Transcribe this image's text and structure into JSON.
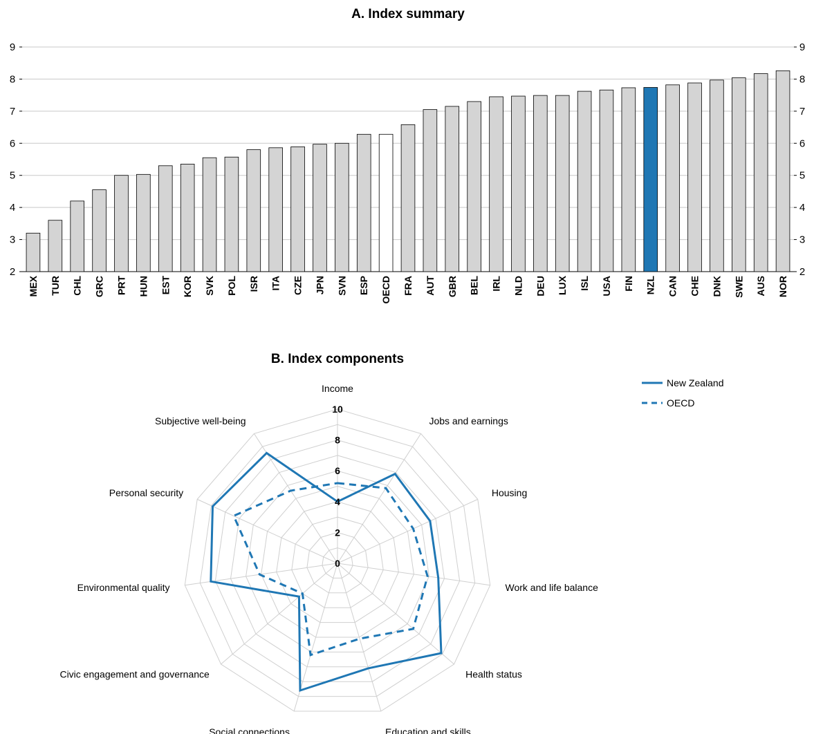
{
  "chart_data": [
    {
      "type": "bar",
      "title": "A. Index summary",
      "categories": [
        "MEX",
        "TUR",
        "CHL",
        "GRC",
        "PRT",
        "HUN",
        "EST",
        "KOR",
        "SVK",
        "POL",
        "ISR",
        "ITA",
        "CZE",
        "JPN",
        "SVN",
        "ESP",
        "OECD",
        "FRA",
        "AUT",
        "GBR",
        "BEL",
        "IRL",
        "NLD",
        "DEU",
        "LUX",
        "ISL",
        "USA",
        "FIN",
        "NZL",
        "CAN",
        "CHE",
        "DNK",
        "SWE",
        "AUS",
        "NOR"
      ],
      "values": [
        3.2,
        3.6,
        4.2,
        4.55,
        5.0,
        5.03,
        5.3,
        5.35,
        5.55,
        5.57,
        5.8,
        5.86,
        5.89,
        5.97,
        6.0,
        6.28,
        6.28,
        6.58,
        7.05,
        7.15,
        7.3,
        7.45,
        7.47,
        7.49,
        7.49,
        7.62,
        7.66,
        7.73,
        7.74,
        7.82,
        7.88,
        7.97,
        8.04,
        8.17,
        8.26
      ],
      "ylim": [
        2,
        9
      ],
      "yticks": [
        2,
        3,
        4,
        5,
        6,
        7,
        8,
        9
      ],
      "grid": true,
      "highlight": {
        "NZL": "#1f77b4",
        "OECD": "#ffffff"
      },
      "bar_color": "#d4d4d4"
    },
    {
      "type": "radar",
      "title": "B. Index components",
      "axes": [
        "Income",
        "Jobs and earnings",
        "Housing",
        "Work and life balance",
        "Health status",
        "Education and skills",
        "Social connections",
        "Civic engagement and governance",
        "Environmental quality",
        "Personal security",
        "Subjective well-being"
      ],
      "rlim": [
        0,
        10
      ],
      "rticks": [
        0,
        2,
        4,
        6,
        8,
        10
      ],
      "series": [
        {
          "name": "New Zealand",
          "style": "solid",
          "values": [
            4.0,
            6.9,
            6.6,
            6.6,
            8.9,
            7.1,
            8.6,
            3.3,
            8.3,
            8.9,
            8.5
          ]
        },
        {
          "name": "OECD",
          "style": "dashed",
          "values": [
            5.2,
            5.8,
            5.4,
            5.9,
            6.5,
            5.1,
            6.2,
            3.0,
            5.1,
            7.4,
            5.6
          ]
        }
      ],
      "legend": "top-right",
      "color": "#1f77b4"
    }
  ]
}
